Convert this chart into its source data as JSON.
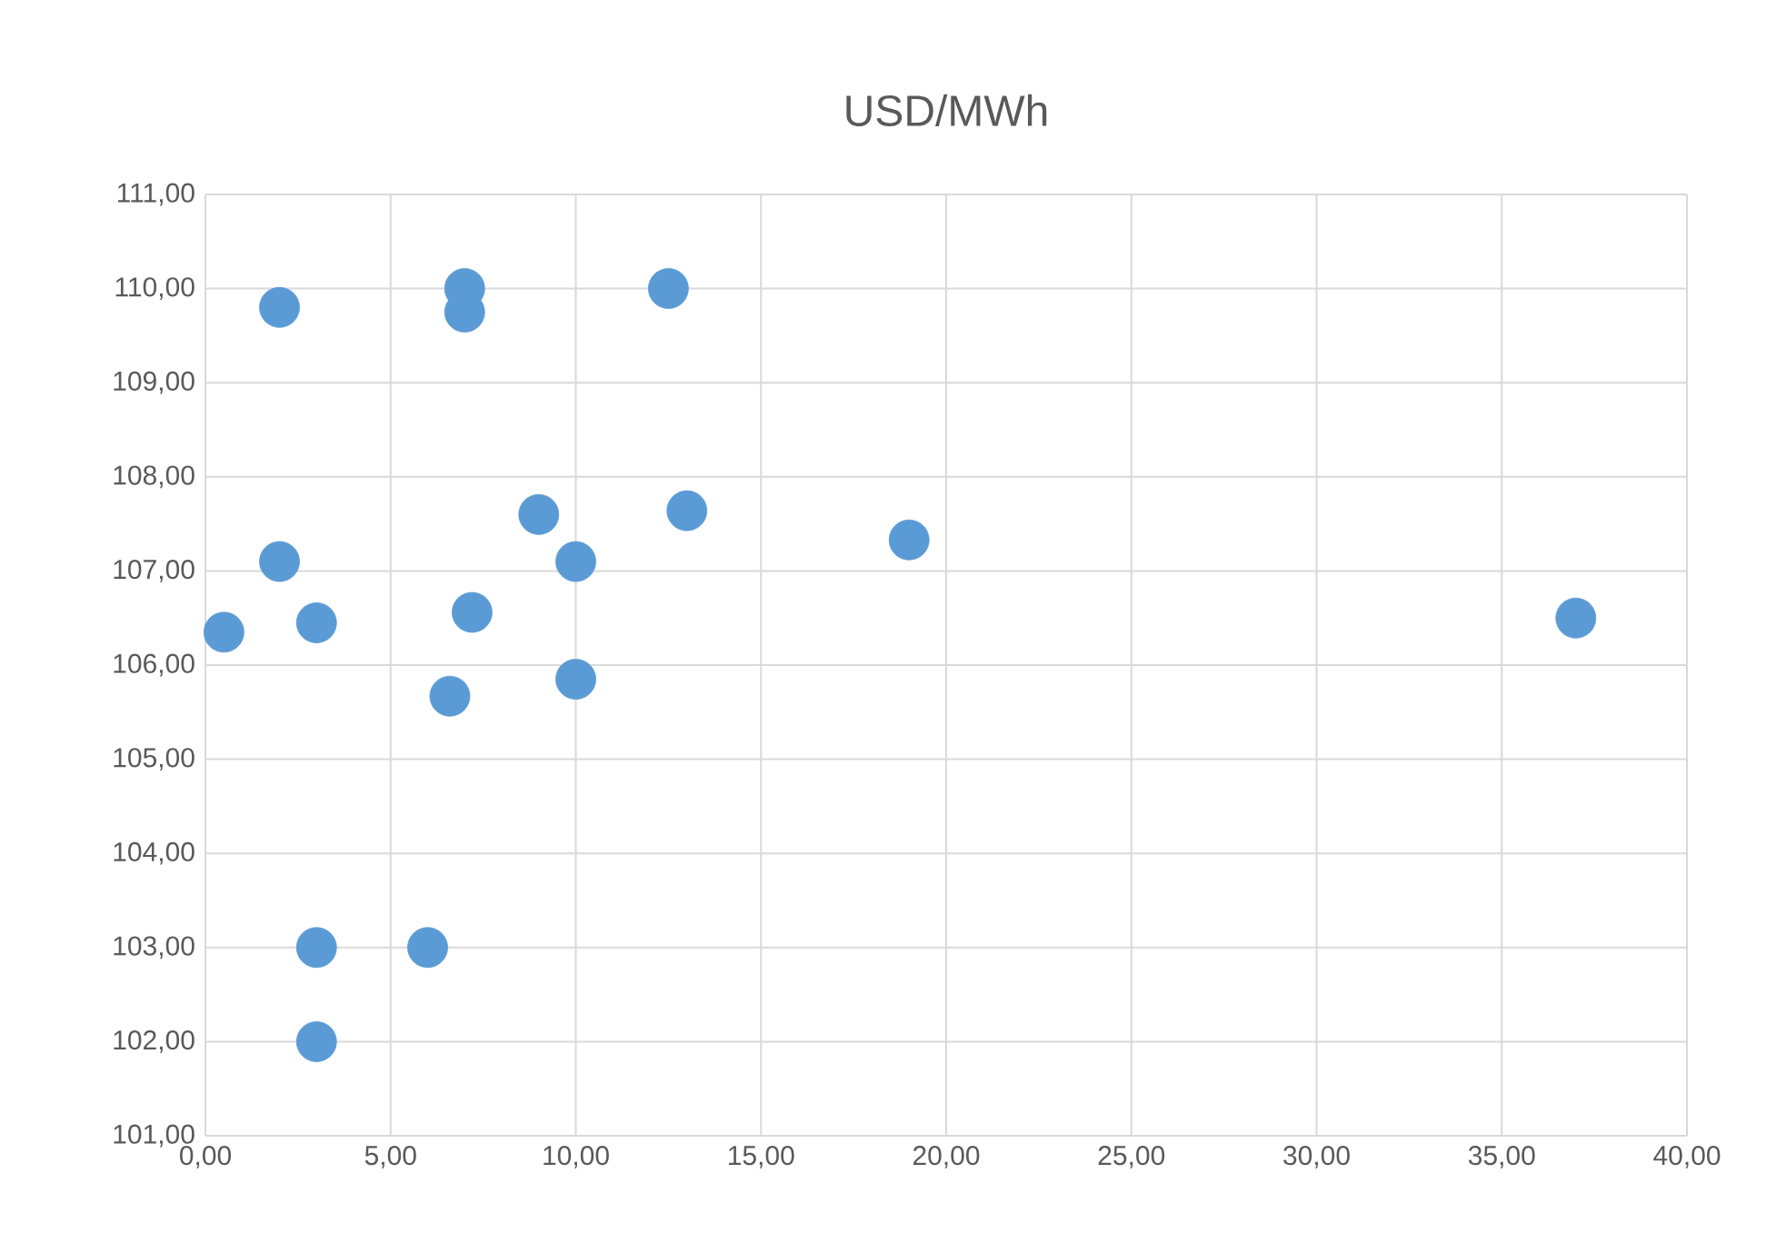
{
  "chart_data": {
    "type": "scatter",
    "title": "USD/MWh",
    "x": [
      2,
      7,
      7,
      12.5,
      2,
      0.5,
      3,
      6.6,
      7.2,
      9,
      10,
      10,
      13,
      19,
      37,
      3,
      6,
      3
    ],
    "values": [
      109.8,
      110,
      109.75,
      110,
      107.1,
      106.35,
      106.45,
      105.67,
      106.56,
      107.6,
      107.1,
      105.85,
      107.64,
      107.33,
      106.5,
      103,
      103,
      102
    ],
    "color": "#5b9bd5",
    "marker": "circle",
    "grid": true,
    "xlim": [
      0,
      40
    ],
    "ylim": [
      101,
      111
    ],
    "xticks": [
      {
        "value": 0,
        "label": "0,00"
      },
      {
        "value": 5,
        "label": "5,00"
      },
      {
        "value": 10,
        "label": "10,00"
      },
      {
        "value": 15,
        "label": "15,00"
      },
      {
        "value": 20,
        "label": "20,00"
      },
      {
        "value": 25,
        "label": "25,00"
      },
      {
        "value": 30,
        "label": "30,00"
      },
      {
        "value": 35,
        "label": "35,00"
      },
      {
        "value": 40,
        "label": "40,00"
      }
    ],
    "yticks": [
      {
        "value": 101,
        "label": "101,00"
      },
      {
        "value": 102,
        "label": "102,00"
      },
      {
        "value": 103,
        "label": "103,00"
      },
      {
        "value": 104,
        "label": "104,00"
      },
      {
        "value": 105,
        "label": "105,00"
      },
      {
        "value": 106,
        "label": "106,00"
      },
      {
        "value": 107,
        "label": "107,00"
      },
      {
        "value": 108,
        "label": "108,00"
      },
      {
        "value": 109,
        "label": "109,00"
      },
      {
        "value": 110,
        "label": "110,00"
      },
      {
        "value": 111,
        "label": "111,00"
      }
    ]
  }
}
